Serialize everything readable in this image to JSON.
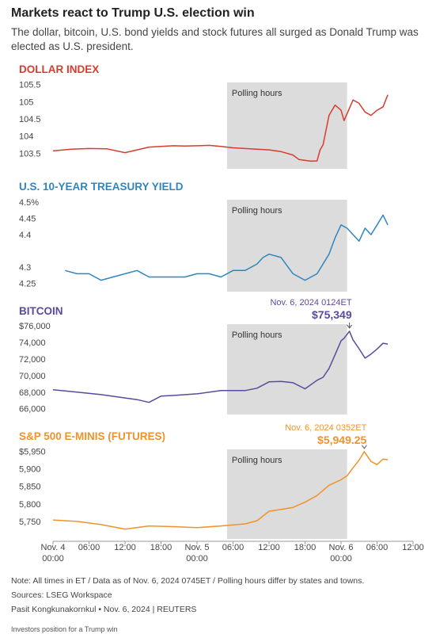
{
  "title": "Markets react to Trump U.S. election win",
  "subtitle": "The dollar, bitcoin, U.S. bond yields and stock futures all surged as Donald Trump was elected as U.S. president.",
  "chart_data": [
    {
      "type": "line",
      "title": "DOLLAR INDEX",
      "color": "#d63c2f",
      "x": [
        0,
        3,
        6,
        9,
        12,
        14,
        16,
        18,
        20,
        22,
        24,
        26,
        28,
        30,
        32,
        34,
        36,
        38,
        40,
        41,
        43,
        44,
        44.5,
        45,
        46,
        47,
        48,
        48.5,
        50,
        51,
        52,
        53,
        54,
        55,
        55.8
      ],
      "values": [
        103.57,
        103.62,
        103.64,
        103.63,
        103.52,
        103.6,
        103.68,
        103.7,
        103.72,
        103.71,
        103.72,
        103.73,
        103.7,
        103.66,
        103.64,
        103.62,
        103.6,
        103.55,
        103.45,
        103.32,
        103.27,
        103.28,
        103.6,
        103.75,
        104.6,
        104.9,
        104.75,
        104.45,
        105.05,
        104.95,
        104.7,
        104.6,
        104.75,
        104.85,
        105.2
      ],
      "xlim": [
        0,
        60
      ],
      "ylim": [
        103.05,
        105.65
      ],
      "yticks": [
        103.5,
        104,
        104.5,
        105,
        105.5
      ],
      "shaded_region": {
        "label": "Polling hours",
        "x": [
          29,
          49
        ]
      }
    },
    {
      "type": "line",
      "title": "U.S. 10-YEAR TREASURY YIELD",
      "color": "#2f86bf",
      "x": [
        2,
        4,
        6,
        8,
        10,
        12,
        14,
        16,
        18,
        20,
        22,
        24,
        26,
        28,
        30,
        32,
        34,
        35,
        36,
        38,
        40,
        41,
        42,
        44,
        46,
        47,
        48,
        49,
        50,
        51,
        52,
        53,
        54,
        55,
        55.8
      ],
      "values": [
        4.29,
        4.28,
        4.28,
        4.26,
        4.27,
        4.28,
        4.29,
        4.27,
        4.27,
        4.27,
        4.27,
        4.28,
        4.28,
        4.27,
        4.29,
        4.29,
        4.31,
        4.33,
        4.34,
        4.33,
        4.28,
        4.27,
        4.26,
        4.28,
        4.34,
        4.39,
        4.43,
        4.42,
        4.4,
        4.38,
        4.42,
        4.4,
        4.43,
        4.46,
        4.43
      ],
      "xlim": [
        0,
        60
      ],
      "ylim": [
        4.225,
        4.5
      ],
      "yticks": [
        4.25,
        4.3,
        4.4,
        4.45,
        {
          "value": 4.5,
          "label": "4.5%"
        }
      ],
      "shaded_region": {
        "label": "Polling hours",
        "x": [
          29,
          49
        ]
      }
    },
    {
      "type": "line",
      "title": "BITCOIN",
      "color": "#5b4a9c",
      "x": [
        0,
        4,
        8,
        12,
        14,
        16,
        18,
        20,
        24,
        28,
        32,
        34,
        36,
        38,
        40,
        42,
        44,
        45,
        46,
        47,
        48,
        48.5,
        49.4,
        50,
        51,
        52,
        53,
        54,
        55,
        55.8
      ],
      "values": [
        68290,
        68000,
        67700,
        67300,
        67100,
        66760,
        67520,
        67600,
        67800,
        68190,
        68190,
        68480,
        69240,
        69300,
        69140,
        68400,
        69430,
        69800,
        70860,
        72500,
        74190,
        74500,
        75349,
        74300,
        73240,
        72100,
        72600,
        73200,
        73900,
        73800
      ],
      "xlim": [
        0,
        60
      ],
      "ylim": [
        65300,
        76300
      ],
      "yticks": [
        {
          "value": 66000,
          "label": "66,000"
        },
        {
          "value": 68000,
          "label": "68,000"
        },
        {
          "value": 70000,
          "label": "70,000"
        },
        {
          "value": 72000,
          "label": "72,000"
        },
        {
          "value": 74000,
          "label": "74,000"
        },
        {
          "value": 76000,
          "label": "$76,000"
        }
      ],
      "shaded_region": {
        "label": "Polling hours",
        "x": [
          29,
          49
        ]
      },
      "annotation": {
        "x": 49.4,
        "text": "Nov. 6, 2024 0124ET",
        "value": 75349,
        "value_label": "$75,349"
      }
    },
    {
      "type": "line",
      "title": "S&P 500 E-MINIS (FUTURES)",
      "color": "#f0922b",
      "x": [
        0,
        4,
        8,
        12,
        16,
        20,
        24,
        28,
        32,
        34,
        36,
        38,
        40,
        42,
        44,
        46,
        48,
        49,
        50,
        51,
        51.87,
        53,
        54,
        55,
        55.8
      ],
      "values": [
        5754,
        5750,
        5741,
        5728,
        5737,
        5735,
        5732,
        5737,
        5743,
        5752,
        5779,
        5784,
        5790,
        5805,
        5824,
        5853,
        5869,
        5880,
        5903,
        5925,
        5949.25,
        5921,
        5912,
        5928,
        5926
      ],
      "xlim": [
        0,
        60
      ],
      "ylim": [
        5700,
        5960
      ],
      "yticks": [
        {
          "value": 5750,
          "label": "5,750"
        },
        {
          "value": 5800,
          "label": "5,800"
        },
        {
          "value": 5850,
          "label": "5,850"
        },
        {
          "value": 5900,
          "label": "5,900"
        },
        {
          "value": 5950,
          "label": "$5,950"
        }
      ],
      "xticks": [
        {
          "value": 0,
          "label": "Nov. 4\n00:00"
        },
        {
          "value": 6,
          "label": "06:00"
        },
        {
          "value": 12,
          "label": "12:00"
        },
        {
          "value": 18,
          "label": "18:00"
        },
        {
          "value": 24,
          "label": "Nov. 5\n00:00"
        },
        {
          "value": 30,
          "label": "06:00"
        },
        {
          "value": 36,
          "label": "12:00"
        },
        {
          "value": 42,
          "label": "18:00"
        },
        {
          "value": 48,
          "label": "Nov. 6\n00:00"
        },
        {
          "value": 54,
          "label": "06:00"
        },
        {
          "value": 60,
          "label": "12:00"
        }
      ],
      "shaded_region": {
        "label": "Polling hours",
        "x": [
          29,
          49
        ]
      },
      "annotation": {
        "x": 51.87,
        "text": "Nov. 6, 2024 0352ET",
        "value": 5949.25,
        "value_label": "$5,949.25"
      }
    }
  ],
  "notes": [
    "Note: All times in ET / Data as of Nov. 6, 2024 0745ET / Polling hours differ by states and towns.",
    "Sources: LSEG Workspace",
    "Pasit Kongkunakornkul • Nov. 6, 2024 | REUTERS"
  ],
  "footer": "Investors position for a Trump win"
}
